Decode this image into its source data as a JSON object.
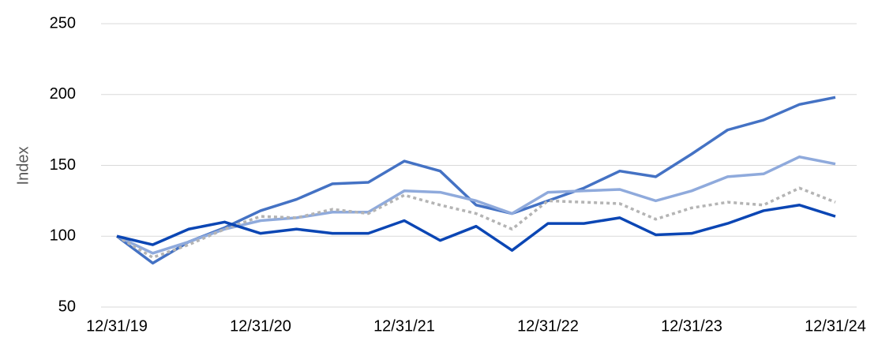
{
  "chart_data": {
    "type": "line",
    "y_label": "Index",
    "categories": [
      "12/31/19",
      null,
      null,
      null,
      "12/31/20",
      null,
      null,
      null,
      "12/31/21",
      null,
      null,
      null,
      "12/31/22",
      null,
      null,
      null,
      "12/31/23",
      null,
      null,
      null,
      "12/31/24"
    ],
    "series": [
      {
        "color": "#4472c4",
        "dash": false,
        "values": [
          100,
          81,
          96,
          106,
          118,
          126,
          137,
          138,
          153,
          146,
          122,
          116,
          125,
          134,
          146,
          142,
          158,
          175,
          182,
          193,
          198
        ]
      },
      {
        "color": "#8faadc",
        "dash": false,
        "values": [
          100,
          88,
          96,
          105,
          111,
          113,
          117,
          117,
          132,
          131,
          125,
          116,
          131,
          132,
          133,
          125,
          132,
          142,
          144,
          156,
          151
        ]
      },
      {
        "color": "#b4b4b4",
        "dash": true,
        "values": [
          100,
          85,
          94,
          105,
          114,
          113,
          119,
          116,
          129,
          122,
          116,
          105,
          125,
          124,
          123,
          112,
          120,
          124,
          122,
          134,
          124
        ]
      },
      {
        "color": "#0b46b4",
        "dash": false,
        "values": [
          100,
          94,
          105,
          110,
          102,
          105,
          102,
          102,
          111,
          97,
          107,
          90,
          109,
          109,
          113,
          101,
          102,
          109,
          118,
          122,
          114
        ]
      }
    ],
    "ylim": [
      50,
      250
    ],
    "yticks": [
      50,
      100,
      150,
      200,
      250
    ],
    "grid": true
  }
}
